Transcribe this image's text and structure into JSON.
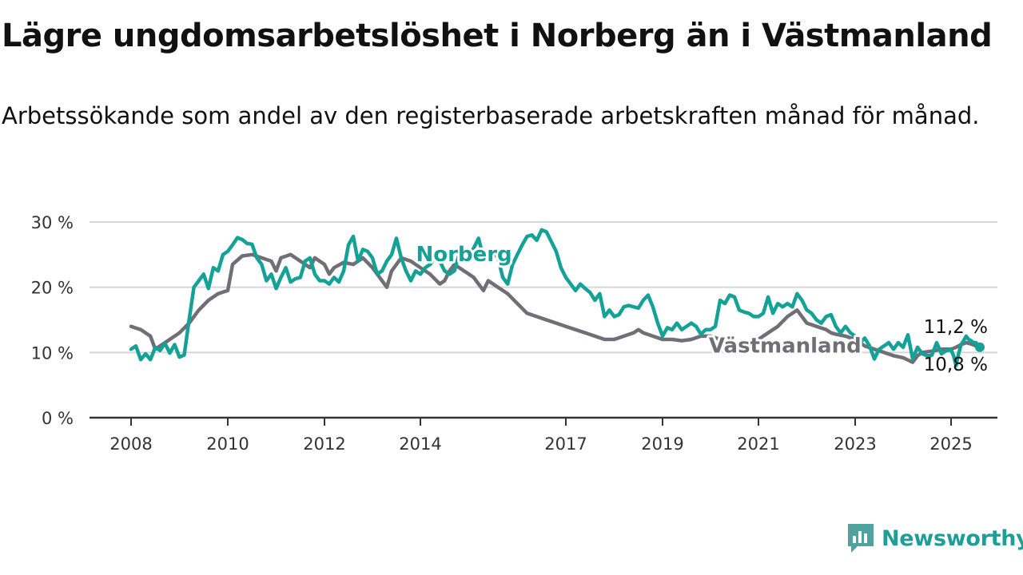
{
  "title": "Lägre ungdomsarbetslöshet i Norberg än i Västmanland",
  "subtitle": "Arbetssökande som andel av den registerbaserade arbetskraften månad för månad.",
  "brand": {
    "name": "Newsworthy",
    "icon": "chart-bars-icon",
    "color": "#4fa29e"
  },
  "colors": {
    "Norberg": "#14a197",
    "Västmanland": "#706e76",
    "grid": "#d6d6d6",
    "axis": "#333333"
  },
  "chart_data": {
    "type": "line",
    "x_ticks": [
      "2008",
      "2010",
      "2012",
      "2014",
      "2017",
      "2019",
      "2021",
      "2023",
      "2025"
    ],
    "y_ticks": [
      "0 %",
      "10 %",
      "20 %",
      "30 %"
    ],
    "ylim": [
      0,
      30
    ],
    "grid": "horizontal",
    "end_labels": {
      "Norberg": "10,8 %",
      "Västmanland": "11,2 %"
    },
    "series": [
      {
        "name": "Norberg",
        "points": [
          [
            2008.0,
            10.5
          ],
          [
            2008.1,
            11.0
          ],
          [
            2008.2,
            8.9
          ],
          [
            2008.3,
            9.8
          ],
          [
            2008.4,
            8.9
          ],
          [
            2008.5,
            10.8
          ],
          [
            2008.6,
            10.3
          ],
          [
            2008.7,
            11.4
          ],
          [
            2008.8,
            9.9
          ],
          [
            2008.9,
            11.2
          ],
          [
            2009.0,
            9.3
          ],
          [
            2009.1,
            9.6
          ],
          [
            2009.2,
            15.0
          ],
          [
            2009.3,
            20.0
          ],
          [
            2009.4,
            21.0
          ],
          [
            2009.5,
            22.0
          ],
          [
            2009.6,
            19.8
          ],
          [
            2009.7,
            23.0
          ],
          [
            2009.8,
            22.5
          ],
          [
            2009.9,
            25.0
          ],
          [
            2010.0,
            25.5
          ],
          [
            2010.1,
            26.5
          ],
          [
            2010.2,
            27.6
          ],
          [
            2010.3,
            27.3
          ],
          [
            2010.4,
            26.7
          ],
          [
            2010.5,
            26.6
          ],
          [
            2010.6,
            24.5
          ],
          [
            2010.7,
            23.5
          ],
          [
            2010.8,
            21.0
          ],
          [
            2010.9,
            22.0
          ],
          [
            2011.0,
            19.8
          ],
          [
            2011.1,
            21.5
          ],
          [
            2011.2,
            23.0
          ],
          [
            2011.3,
            20.8
          ],
          [
            2011.4,
            21.3
          ],
          [
            2011.5,
            21.5
          ],
          [
            2011.6,
            24.0
          ],
          [
            2011.7,
            24.5
          ],
          [
            2011.8,
            22.0
          ],
          [
            2011.9,
            21.0
          ],
          [
            2012.0,
            21.0
          ],
          [
            2012.1,
            20.5
          ],
          [
            2012.2,
            21.5
          ],
          [
            2012.3,
            20.8
          ],
          [
            2012.4,
            22.5
          ],
          [
            2012.5,
            26.5
          ],
          [
            2012.6,
            27.8
          ],
          [
            2012.7,
            24.0
          ],
          [
            2012.8,
            25.8
          ],
          [
            2012.9,
            25.5
          ],
          [
            2013.0,
            24.5
          ],
          [
            2013.1,
            22.0
          ],
          [
            2013.2,
            22.5
          ],
          [
            2013.3,
            24.0
          ],
          [
            2013.4,
            25.0
          ],
          [
            2013.5,
            27.5
          ],
          [
            2013.6,
            24.5
          ],
          [
            2013.7,
            22.5
          ],
          [
            2013.8,
            21.0
          ],
          [
            2013.9,
            22.5
          ],
          [
            2014.0,
            22.0
          ],
          [
            2014.1,
            23.0
          ],
          [
            2014.2,
            23.5
          ],
          [
            2014.3,
            24.5
          ],
          [
            2014.4,
            24.0
          ],
          [
            2014.5,
            22.5
          ],
          [
            2014.6,
            22.0
          ],
          [
            2014.7,
            22.5
          ],
          [
            2014.8,
            25.0
          ],
          [
            2014.9,
            26.0
          ],
          [
            2015.0,
            25.0
          ],
          [
            2015.1,
            26.0
          ],
          [
            2015.2,
            27.5
          ],
          [
            2015.3,
            24.5
          ],
          [
            2015.4,
            25.0
          ],
          [
            2015.5,
            25.5
          ],
          [
            2015.6,
            24.5
          ],
          [
            2015.7,
            21.5
          ],
          [
            2015.8,
            20.5
          ],
          [
            2015.9,
            23.5
          ],
          [
            2016.0,
            25.0
          ],
          [
            2016.1,
            26.5
          ],
          [
            2016.2,
            27.8
          ],
          [
            2016.3,
            28.0
          ],
          [
            2016.4,
            27.2
          ],
          [
            2016.5,
            28.8
          ],
          [
            2016.6,
            28.5
          ],
          [
            2016.7,
            27.0
          ],
          [
            2016.8,
            25.5
          ],
          [
            2016.9,
            23.0
          ],
          [
            2017.0,
            21.5
          ],
          [
            2017.1,
            20.5
          ],
          [
            2017.2,
            19.5
          ],
          [
            2017.3,
            20.5
          ],
          [
            2017.4,
            19.8
          ],
          [
            2017.5,
            19.2
          ],
          [
            2017.6,
            18.0
          ],
          [
            2017.7,
            19.0
          ],
          [
            2017.8,
            15.5
          ],
          [
            2017.9,
            16.5
          ],
          [
            2018.0,
            15.5
          ],
          [
            2018.1,
            15.8
          ],
          [
            2018.2,
            17.0
          ],
          [
            2018.3,
            17.2
          ],
          [
            2018.4,
            17.0
          ],
          [
            2018.5,
            16.8
          ],
          [
            2018.6,
            18.0
          ],
          [
            2018.7,
            18.8
          ],
          [
            2018.8,
            17.0
          ],
          [
            2018.9,
            14.5
          ],
          [
            2019.0,
            12.5
          ],
          [
            2019.1,
            13.8
          ],
          [
            2019.2,
            13.5
          ],
          [
            2019.3,
            14.5
          ],
          [
            2019.4,
            13.5
          ],
          [
            2019.5,
            14.0
          ],
          [
            2019.6,
            14.5
          ],
          [
            2019.7,
            14.0
          ],
          [
            2019.8,
            12.8
          ],
          [
            2019.9,
            13.5
          ],
          [
            2020.0,
            13.5
          ],
          [
            2020.1,
            14.0
          ],
          [
            2020.2,
            18.0
          ],
          [
            2020.3,
            17.5
          ],
          [
            2020.4,
            18.8
          ],
          [
            2020.5,
            18.5
          ],
          [
            2020.6,
            16.5
          ],
          [
            2020.7,
            16.2
          ],
          [
            2020.8,
            16.0
          ],
          [
            2020.9,
            15.5
          ],
          [
            2021.0,
            15.5
          ],
          [
            2021.1,
            16.0
          ],
          [
            2021.2,
            18.5
          ],
          [
            2021.3,
            16.0
          ],
          [
            2021.4,
            17.5
          ],
          [
            2021.5,
            17.0
          ],
          [
            2021.6,
            17.5
          ],
          [
            2021.7,
            17.0
          ],
          [
            2021.8,
            19.0
          ],
          [
            2021.9,
            18.0
          ],
          [
            2022.0,
            16.5
          ],
          [
            2022.1,
            16.0
          ],
          [
            2022.2,
            15.0
          ],
          [
            2022.3,
            14.5
          ],
          [
            2022.4,
            15.5
          ],
          [
            2022.5,
            15.8
          ],
          [
            2022.6,
            14.0
          ],
          [
            2022.7,
            13.0
          ],
          [
            2022.8,
            14.0
          ],
          [
            2022.9,
            13.0
          ],
          [
            2023.0,
            12.5
          ],
          [
            2023.1,
            11.5
          ],
          [
            2023.2,
            12.2
          ],
          [
            2023.3,
            11.0
          ],
          [
            2023.4,
            9.0
          ],
          [
            2023.5,
            10.5
          ],
          [
            2023.6,
            11.0
          ],
          [
            2023.7,
            11.5
          ],
          [
            2023.8,
            10.5
          ],
          [
            2023.9,
            11.5
          ],
          [
            2024.0,
            10.8
          ],
          [
            2024.1,
            12.7
          ],
          [
            2024.2,
            9.0
          ],
          [
            2024.3,
            10.8
          ],
          [
            2024.4,
            9.8
          ],
          [
            2024.5,
            9.5
          ],
          [
            2024.6,
            9.6
          ],
          [
            2024.7,
            11.5
          ],
          [
            2024.8,
            9.8
          ],
          [
            2024.9,
            10.3
          ],
          [
            2025.0,
            10.4
          ],
          [
            2025.1,
            9.5
          ],
          [
            2025.2,
            8.0
          ],
          [
            2025.3,
            9.8
          ],
          [
            2025.4,
            11.2
          ],
          [
            2025.5,
            11.8
          ],
          [
            2025.6,
            12.5
          ],
          [
            2025.7,
            12.0
          ],
          [
            2025.8,
            11.8
          ],
          [
            2025.9,
            11.5
          ],
          [
            2026.0,
            11.5
          ],
          [
            2026.1,
            10.6
          ],
          [
            2026.15,
            10.8
          ]
        ]
      },
      {
        "name": "Västmanland",
        "points": [
          [
            2008.0,
            14.0
          ],
          [
            2008.2,
            13.5
          ],
          [
            2008.4,
            12.5
          ],
          [
            2008.5,
            10.5
          ],
          [
            2008.7,
            11.5
          ],
          [
            2009.0,
            13.0
          ],
          [
            2009.2,
            14.5
          ],
          [
            2009.4,
            16.5
          ],
          [
            2009.6,
            18.0
          ],
          [
            2009.8,
            19.0
          ],
          [
            2010.0,
            19.5
          ],
          [
            2010.1,
            23.5
          ],
          [
            2010.3,
            24.8
          ],
          [
            2010.5,
            25.0
          ],
          [
            2010.7,
            24.5
          ],
          [
            2010.9,
            24.0
          ],
          [
            2011.0,
            22.5
          ],
          [
            2011.1,
            24.5
          ],
          [
            2011.3,
            25.0
          ],
          [
            2011.5,
            24.0
          ],
          [
            2011.7,
            23.0
          ],
          [
            2011.8,
            24.5
          ],
          [
            2012.0,
            23.5
          ],
          [
            2012.1,
            22.0
          ],
          [
            2012.2,
            23.0
          ],
          [
            2012.4,
            23.8
          ],
          [
            2012.6,
            23.5
          ],
          [
            2012.8,
            24.5
          ],
          [
            2013.0,
            23.0
          ],
          [
            2013.1,
            22.0
          ],
          [
            2013.3,
            20.0
          ],
          [
            2013.4,
            22.5
          ],
          [
            2013.6,
            24.5
          ],
          [
            2013.8,
            24.0
          ],
          [
            2014.0,
            23.0
          ],
          [
            2014.2,
            22.0
          ],
          [
            2014.4,
            20.5
          ],
          [
            2014.5,
            21.0
          ],
          [
            2014.6,
            22.5
          ],
          [
            2014.7,
            23.5
          ],
          [
            2014.9,
            22.5
          ],
          [
            2015.0,
            22.0
          ],
          [
            2015.1,
            21.5
          ],
          [
            2015.3,
            19.5
          ],
          [
            2015.4,
            21.0
          ],
          [
            2015.6,
            20.0
          ],
          [
            2015.8,
            19.0
          ],
          [
            2016.0,
            17.5
          ],
          [
            2016.2,
            16.0
          ],
          [
            2016.4,
            15.5
          ],
          [
            2016.6,
            15.0
          ],
          [
            2016.8,
            14.5
          ],
          [
            2017.0,
            14.0
          ],
          [
            2017.2,
            13.5
          ],
          [
            2017.4,
            13.0
          ],
          [
            2017.6,
            12.5
          ],
          [
            2017.8,
            12.0
          ],
          [
            2018.0,
            12.0
          ],
          [
            2018.2,
            12.5
          ],
          [
            2018.4,
            13.0
          ],
          [
            2018.5,
            13.5
          ],
          [
            2018.6,
            13.0
          ],
          [
            2018.8,
            12.5
          ],
          [
            2019.0,
            12.0
          ],
          [
            2019.2,
            12.0
          ],
          [
            2019.4,
            11.8
          ],
          [
            2019.6,
            12.0
          ],
          [
            2019.8,
            12.5
          ],
          [
            2020.0,
            12.5
          ],
          [
            2020.2,
            12.0
          ],
          [
            2020.4,
            11.5
          ],
          [
            2020.6,
            11.0
          ],
          [
            2020.8,
            11.5
          ],
          [
            2021.0,
            12.0
          ],
          [
            2021.2,
            13.0
          ],
          [
            2021.4,
            14.0
          ],
          [
            2021.6,
            15.5
          ],
          [
            2021.8,
            16.5
          ],
          [
            2022.0,
            14.5
          ],
          [
            2022.2,
            14.0
          ],
          [
            2022.4,
            13.5
          ],
          [
            2022.5,
            13.0
          ],
          [
            2022.6,
            12.8
          ],
          [
            2022.8,
            12.5
          ],
          [
            2023.0,
            12.0
          ],
          [
            2023.2,
            11.0
          ],
          [
            2023.4,
            10.5
          ],
          [
            2023.6,
            10.0
          ],
          [
            2023.8,
            9.5
          ],
          [
            2024.0,
            9.2
          ],
          [
            2024.2,
            8.5
          ],
          [
            2024.3,
            9.5
          ],
          [
            2024.4,
            10.0
          ],
          [
            2024.6,
            10.2
          ],
          [
            2024.8,
            10.5
          ],
          [
            2025.0,
            10.5
          ],
          [
            2025.2,
            10.8
          ],
          [
            2025.4,
            11.2
          ],
          [
            2025.6,
            11.5
          ],
          [
            2025.8,
            11.3
          ],
          [
            2026.0,
            11.0
          ],
          [
            2026.15,
            11.2
          ]
        ]
      }
    ],
    "series_labels": {
      "Norberg": {
        "text": "Norberg",
        "x": 2014.9,
        "y": 24.0
      },
      "Västmanland": {
        "text": "Västmanland",
        "x": 2021.55,
        "y": 10.0
      }
    }
  }
}
